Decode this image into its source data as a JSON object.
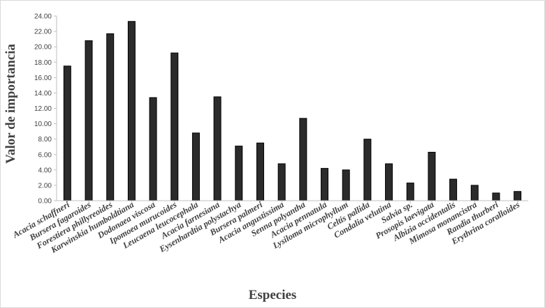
{
  "chart_data": {
    "type": "bar",
    "xlabel": "Especies",
    "ylabel": "Valor de importancia",
    "ylim": [
      0,
      24
    ],
    "ytick_step": 2,
    "ytick_labels": [
      "0.00",
      "2.00",
      "4.00",
      "6.00",
      "8.00",
      "10.00",
      "12.00",
      "14.00",
      "16.00",
      "18.00",
      "20.00",
      "22.00",
      "24.00"
    ],
    "grid": false,
    "legend": "none",
    "bar_color": "#2b2b2b",
    "categories": [
      "Acacia schaffneri",
      "Bursera fagaroides",
      "Forestiera phillyreoides",
      "Karwinskia humboldtiana",
      "Dodonaea viscosa",
      "Ipomoea murucoides",
      "Leucaena leucocephala",
      "Acacia farnesiana",
      "Eysenhardtia polystachya",
      "Bursera palmeri",
      "Acacia angustissima",
      "Senna polyantha",
      "Acacia pennatula",
      "Lysiloma microphyllum",
      "Celtis pallida",
      "Condalia velutina",
      "Salvia sp.",
      "Prosopis laevigata",
      "Albizia occidentalis",
      "Mimosa monancistra",
      "Randia thurberi",
      "Erythrina coralloides"
    ],
    "values": [
      17.5,
      20.8,
      21.7,
      23.3,
      13.4,
      19.2,
      8.8,
      13.5,
      7.1,
      7.5,
      4.8,
      10.7,
      4.2,
      4.0,
      8.0,
      4.8,
      2.3,
      6.3,
      2.8,
      2.0,
      1.0,
      1.2
    ]
  }
}
